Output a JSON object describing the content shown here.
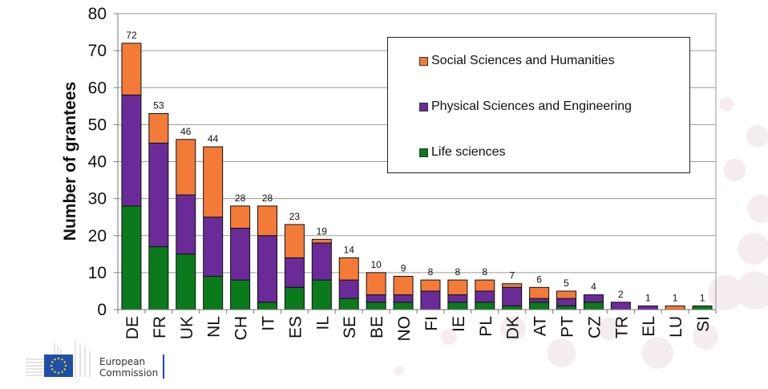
{
  "chart_data": {
    "type": "bar",
    "stacked": true,
    "title": "",
    "xlabel": "",
    "ylabel": "Number of grantees",
    "ylim": [
      0,
      80
    ],
    "yticks": [
      0,
      10,
      20,
      30,
      40,
      50,
      60,
      70,
      80
    ],
    "grid": true,
    "legend_position": "top-right",
    "categories": [
      "DE",
      "FR",
      "UK",
      "NL",
      "CH",
      "IT",
      "ES",
      "IL",
      "SE",
      "BE",
      "NO",
      "FI",
      "IE",
      "PL",
      "DK",
      "AT",
      "PT",
      "CZ",
      "TR",
      "EL",
      "LU",
      "SI"
    ],
    "series": [
      {
        "name": "Life sciences",
        "color": "#0b7a1c",
        "values": [
          28,
          17,
          15,
          9,
          8,
          2,
          6,
          8,
          3,
          2,
          2,
          0,
          2,
          2,
          1,
          2,
          1,
          2,
          0,
          0,
          0,
          1
        ]
      },
      {
        "name": "Physical Sciences and Engineering",
        "color": "#6a2a97",
        "values": [
          30,
          28,
          16,
          16,
          14,
          18,
          8,
          10,
          5,
          2,
          2,
          5,
          2,
          3,
          5,
          1,
          2,
          2,
          2,
          1,
          0,
          0
        ]
      },
      {
        "name": "Social Sciences and Humanities",
        "color": "#f47a38",
        "values": [
          14,
          8,
          15,
          19,
          6,
          8,
          9,
          1,
          6,
          6,
          5,
          3,
          4,
          3,
          1,
          3,
          2,
          0,
          0,
          0,
          1,
          0
        ]
      }
    ],
    "totals": [
      72,
      53,
      46,
      44,
      28,
      28,
      23,
      19,
      14,
      10,
      9,
      8,
      8,
      8,
      7,
      6,
      5,
      4,
      2,
      1,
      1,
      1
    ],
    "legend_order": [
      "Social Sciences and Humanities",
      "Physical Sciences and Engineering",
      "Life sciences"
    ]
  },
  "footer": {
    "logo_line1": "European",
    "logo_line2": "Commission",
    "logo_flag_color": "#1f4fa8"
  }
}
